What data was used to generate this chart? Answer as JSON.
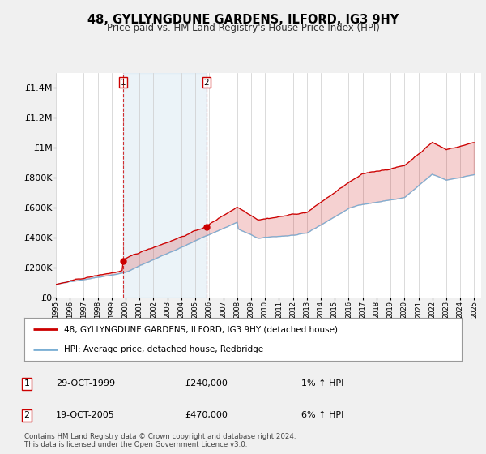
{
  "title": "48, GYLLYNGDUNE GARDENS, ILFORD, IG3 9HY",
  "subtitle": "Price paid vs. HM Land Registry's House Price Index (HPI)",
  "legend_line1": "48, GYLLYNGDUNE GARDENS, ILFORD, IG3 9HY (detached house)",
  "legend_line2": "HPI: Average price, detached house, Redbridge",
  "sale1_date": "29-OCT-1999",
  "sale1_price": "£240,000",
  "sale1_hpi": "1% ↑ HPI",
  "sale1_year": 1999.83,
  "sale1_value": 240000,
  "sale2_date": "19-OCT-2005",
  "sale2_price": "£470,000",
  "sale2_hpi": "6% ↑ HPI",
  "sale2_year": 2005.8,
  "sale2_value": 470000,
  "footer": "Contains HM Land Registry data © Crown copyright and database right 2024.\nThis data is licensed under the Open Government Licence v3.0.",
  "price_color": "#cc0000",
  "hpi_color": "#7bafd4",
  "shade_color": "#d0e4f5",
  "background_color": "#f0f0f0",
  "plot_bg_color": "#ffffff",
  "ylim": [
    0,
    1500000
  ],
  "yticks": [
    0,
    200000,
    400000,
    600000,
    800000,
    1000000,
    1200000,
    1400000
  ],
  "ytick_labels": [
    "£0",
    "£200K",
    "£400K",
    "£600K",
    "£800K",
    "£1M",
    "£1.2M",
    "£1.4M"
  ]
}
